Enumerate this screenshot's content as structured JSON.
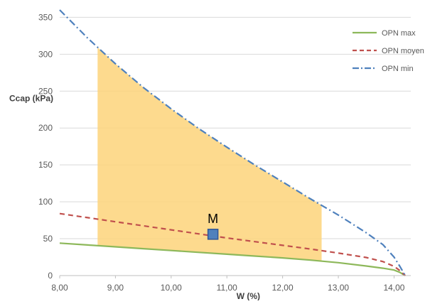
{
  "chart_data": {
    "type": "line",
    "xlabel": "W (%)",
    "ylabel": "Ccap (kPa)",
    "xlim": [
      8.0,
      14.3
    ],
    "ylim": [
      0,
      360
    ],
    "x_ticks": [
      "8,00",
      "9,00",
      "10,00",
      "11,00",
      "12,00",
      "13,00",
      "14,00"
    ],
    "y_ticks": [
      "0",
      "50",
      "100",
      "150",
      "200",
      "250",
      "300",
      "350"
    ],
    "grid": "horizontal",
    "legend_position": "top-right",
    "series": [
      {
        "name": "OPN max",
        "style": "solid",
        "color": "#8db85a",
        "x": [
          8.0,
          8.5,
          9.0,
          9.5,
          10.0,
          10.5,
          11.0,
          11.5,
          12.0,
          12.5,
          13.0,
          13.5,
          13.8,
          14.0,
          14.1,
          14.2
        ],
        "y": [
          44,
          41.5,
          39,
          36.5,
          34,
          31.5,
          29,
          26.5,
          24,
          21,
          17.5,
          13,
          10,
          7.5,
          4.5,
          0
        ]
      },
      {
        "name": "OPN moyen",
        "style": "dashed",
        "color": "#c0504d",
        "x": [
          8.0,
          8.5,
          9.0,
          9.5,
          10.0,
          10.5,
          11.0,
          11.5,
          12.0,
          12.5,
          13.0,
          13.5,
          13.8,
          14.0,
          14.1,
          14.2
        ],
        "y": [
          84,
          78.5,
          73,
          67.5,
          62,
          56.5,
          51,
          46,
          41,
          36,
          30.5,
          24.5,
          19,
          12.5,
          7,
          0
        ]
      },
      {
        "name": "OPN min",
        "style": "dash-dot",
        "color": "#4f81bd",
        "x": [
          8.0,
          8.5,
          9.0,
          9.5,
          10.0,
          10.5,
          11.0,
          11.5,
          12.0,
          12.5,
          13.0,
          13.5,
          13.8,
          14.0,
          14.1,
          14.2
        ],
        "y": [
          360,
          322,
          287,
          255,
          226,
          199,
          174,
          150,
          127,
          104,
          82,
          58,
          42,
          25,
          13,
          0
        ]
      }
    ],
    "shaded_region": {
      "color": "#fdd37a",
      "x_start": 8.68,
      "x_end": 12.7,
      "upper": "OPN min",
      "lower": "OPN max"
    },
    "annotations": [
      {
        "label": "M",
        "x": 10.75,
        "y": 56,
        "marker": "square",
        "color": "#4f81bd"
      }
    ]
  }
}
